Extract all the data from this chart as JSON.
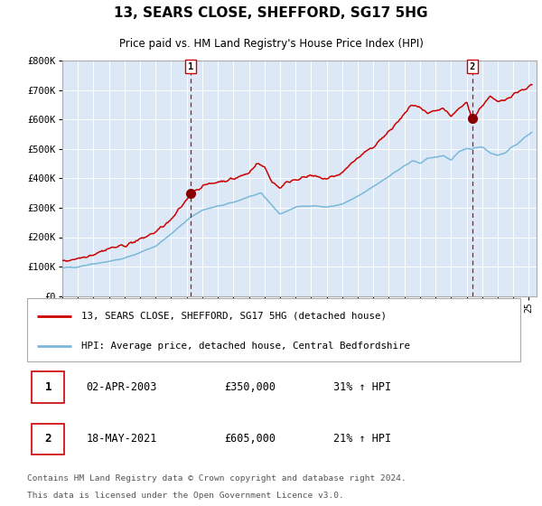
{
  "title": "13, SEARS CLOSE, SHEFFORD, SG17 5HG",
  "subtitle": "Price paid vs. HM Land Registry's House Price Index (HPI)",
  "legend_line1": "13, SEARS CLOSE, SHEFFORD, SG17 5HG (detached house)",
  "legend_line2": "HPI: Average price, detached house, Central Bedfordshire",
  "footer1": "Contains HM Land Registry data © Crown copyright and database right 2024.",
  "footer2": "This data is licensed under the Open Government Licence v3.0.",
  "annotation1": {
    "label": "1",
    "date": "02-APR-2003",
    "price": "£350,000",
    "hpi": "31% ↑ HPI"
  },
  "annotation2": {
    "label": "2",
    "date": "18-MAY-2021",
    "price": "£605,000",
    "hpi": "21% ↑ HPI"
  },
  "hpi_color": "#7ab8d9",
  "price_color": "#cc0000",
  "marker_color": "#880000",
  "vline_color": "#cc0000",
  "plot_bg": "#dce8f5",
  "grid_color": "#ffffff",
  "fig_bg": "#f0f0f0",
  "ylim": [
    0,
    800000
  ],
  "yticks": [
    0,
    100000,
    200000,
    300000,
    400000,
    500000,
    600000,
    700000,
    800000
  ],
  "ytick_labels": [
    "£0",
    "£100K",
    "£200K",
    "£300K",
    "£400K",
    "£500K",
    "£600K",
    "£700K",
    "£800K"
  ],
  "sale1_x": 2003.25,
  "sale1_y": 350000,
  "sale2_x": 2021.37,
  "sale2_y": 605000,
  "vline1_x": 2003.25,
  "vline2_x": 2021.37,
  "xmin": 1995.0,
  "xmax": 2025.5
}
